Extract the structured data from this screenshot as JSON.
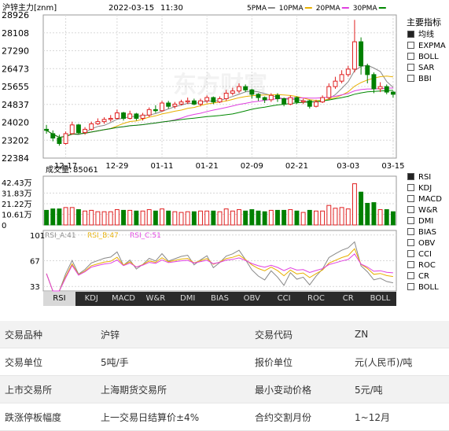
{
  "header": {
    "title": "沪锌主力[znm]",
    "date": "2022-03-15",
    "time": "11:30"
  },
  "ma_legend": [
    {
      "label": "5PMA",
      "color": "#888888"
    },
    {
      "label": "10PMA",
      "color": "#e8b000"
    },
    {
      "label": "20PMA",
      "color": "#e040e0"
    },
    {
      "label": "30PMA",
      "color": "#008800"
    }
  ],
  "indicators_main": {
    "title": "主要指标",
    "items": [
      {
        "label": "均线",
        "selected": true
      },
      {
        "label": "EXPMA",
        "selected": false
      },
      {
        "label": "BOLL",
        "selected": false
      },
      {
        "label": "SAR",
        "selected": false
      },
      {
        "label": "BBI",
        "selected": false
      }
    ]
  },
  "indicators_sub": [
    {
      "label": "RSI",
      "selected": true
    },
    {
      "label": "KDJ",
      "selected": false
    },
    {
      "label": "MACD",
      "selected": false
    },
    {
      "label": "W&R",
      "selected": false
    },
    {
      "label": "DMI",
      "selected": false
    },
    {
      "label": "BIAS",
      "selected": false
    },
    {
      "label": "OBV",
      "selected": false
    },
    {
      "label": "CCI",
      "selected": false
    },
    {
      "label": "ROC",
      "selected": false
    },
    {
      "label": "CR",
      "selected": false
    },
    {
      "label": "BOLL",
      "selected": false
    }
  ],
  "tabs": [
    "RSI",
    "KDJ",
    "MACD",
    "W&R",
    "DMI",
    "BIAS",
    "OBV",
    "CCI",
    "ROC",
    "CR",
    "BOLL"
  ],
  "active_tab": "RSI",
  "colors": {
    "up": "#e02020",
    "down": "#008000",
    "grid": "#d8d8d8",
    "border": "#999999"
  },
  "chart_data": {
    "type": "candlestick",
    "price_axis": {
      "ticks": [
        "28926",
        "28108",
        "27290",
        "26473",
        "25655",
        "24837",
        "24020",
        "23202",
        "22384"
      ],
      "ylim": [
        22384,
        28926
      ]
    },
    "x_ticks": [
      {
        "index": 3,
        "label": "12-17"
      },
      {
        "index": 11,
        "label": "12-29"
      },
      {
        "index": 18,
        "label": "01-11"
      },
      {
        "index": 25,
        "label": "01-21"
      },
      {
        "index": 32,
        "label": "02-09"
      },
      {
        "index": 39,
        "label": "02-21"
      },
      {
        "index": 47,
        "label": "03-03"
      },
      {
        "index": 54,
        "label": "03-15"
      }
    ],
    "candles": [
      [
        23700,
        23650,
        23900,
        23500
      ],
      [
        23500,
        23300,
        23650,
        23150
      ],
      [
        23300,
        23050,
        23450,
        22950
      ],
      [
        23050,
        23500,
        23600,
        23000
      ],
      [
        23500,
        23900,
        24050,
        23450
      ],
      [
        23900,
        23550,
        23950,
        23500
      ],
      [
        23550,
        23700,
        23800,
        23450
      ],
      [
        23700,
        23950,
        24050,
        23650
      ],
      [
        23950,
        24050,
        24200,
        23900
      ],
      [
        24050,
        24150,
        24250,
        23950
      ],
      [
        24150,
        24200,
        24350,
        24050
      ],
      [
        24200,
        24450,
        24600,
        24150
      ],
      [
        24450,
        24200,
        24500,
        24100
      ],
      [
        24200,
        24400,
        24550,
        24150
      ],
      [
        24400,
        24200,
        24450,
        24100
      ],
      [
        24200,
        24350,
        24450,
        24100
      ],
      [
        24350,
        24600,
        24700,
        24250
      ],
      [
        24600,
        24550,
        24800,
        24450
      ],
      [
        24550,
        24900,
        25000,
        24500
      ],
      [
        24900,
        24750,
        25000,
        24650
      ],
      [
        24750,
        24850,
        24950,
        24650
      ],
      [
        24850,
        24950,
        25050,
        24800
      ],
      [
        24950,
        25000,
        25150,
        24850
      ],
      [
        25000,
        24850,
        25100,
        24800
      ],
      [
        24850,
        25000,
        25100,
        24750
      ],
      [
        25000,
        25150,
        25250,
        24900
      ],
      [
        25150,
        24950,
        25200,
        24850
      ],
      [
        24950,
        25100,
        25200,
        24900
      ],
      [
        25100,
        25350,
        25500,
        25000
      ],
      [
        25350,
        25450,
        25600,
        25250
      ],
      [
        25450,
        25650,
        25800,
        25350
      ],
      [
        25650,
        25500,
        25750,
        25400
      ],
      [
        25500,
        25300,
        25550,
        25100
      ],
      [
        25300,
        25150,
        25350,
        25000
      ],
      [
        25150,
        25050,
        25200,
        24900
      ],
      [
        25050,
        25250,
        25350,
        24950
      ],
      [
        25250,
        25100,
        25350,
        24950
      ],
      [
        25100,
        24850,
        25150,
        24750
      ],
      [
        24850,
        25150,
        25250,
        24800
      ],
      [
        25150,
        24950,
        25200,
        24850
      ],
      [
        24950,
        25000,
        25100,
        24850
      ],
      [
        25000,
        24750,
        25050,
        24650
      ],
      [
        24750,
        24950,
        25050,
        24700
      ],
      [
        24950,
        25150,
        25250,
        24900
      ],
      [
        25150,
        25650,
        25800,
        25050
      ],
      [
        25650,
        25900,
        26100,
        25550
      ],
      [
        25900,
        26200,
        26400,
        25800
      ],
      [
        26200,
        26450,
        26600,
        26100
      ],
      [
        26450,
        27700,
        28700,
        26300
      ],
      [
        27700,
        26600,
        27900,
        26200
      ],
      [
        26600,
        26200,
        26700,
        25800
      ],
      [
        26200,
        25550,
        26300,
        25350
      ],
      [
        25550,
        25650,
        25850,
        25400
      ],
      [
        25650,
        25400,
        25750,
        25300
      ],
      [
        25400,
        25300,
        25450,
        25150
      ]
    ],
    "volume": {
      "label": "成交量",
      "value": "85061",
      "ticks": [
        "42.43万",
        "31.83万",
        "21.22万",
        "10.61万",
        "0"
      ],
      "ylim": [
        0,
        424300
      ]
    },
    "rsi": {
      "labels": [
        {
          "name": "RSI_A",
          "value": "41"
        },
        {
          "name": "RSI_B",
          "value": "47"
        },
        {
          "name": "RSI_C",
          "value": "51"
        }
      ],
      "ticks": [
        "101",
        "67",
        "33"
      ],
      "ylim": [
        27,
        107
      ]
    }
  },
  "info_table": [
    [
      {
        "label": "交易品种",
        "value": "沪锌"
      },
      {
        "label": "交易代码",
        "value": "ZN"
      }
    ],
    [
      {
        "label": "交易单位",
        "value": "5吨/手"
      },
      {
        "label": "报价单位",
        "value": "元(人民币)/吨"
      }
    ],
    [
      {
        "label": "上市交易所",
        "value": "上海期货交易所"
      },
      {
        "label": "最小变动价格",
        "value": "5元/吨"
      }
    ],
    [
      {
        "label": "跌涨停板幅度",
        "value": "上一交易日结算价±4%"
      },
      {
        "label": "合约交割月份",
        "value": "1~12月"
      }
    ]
  ]
}
